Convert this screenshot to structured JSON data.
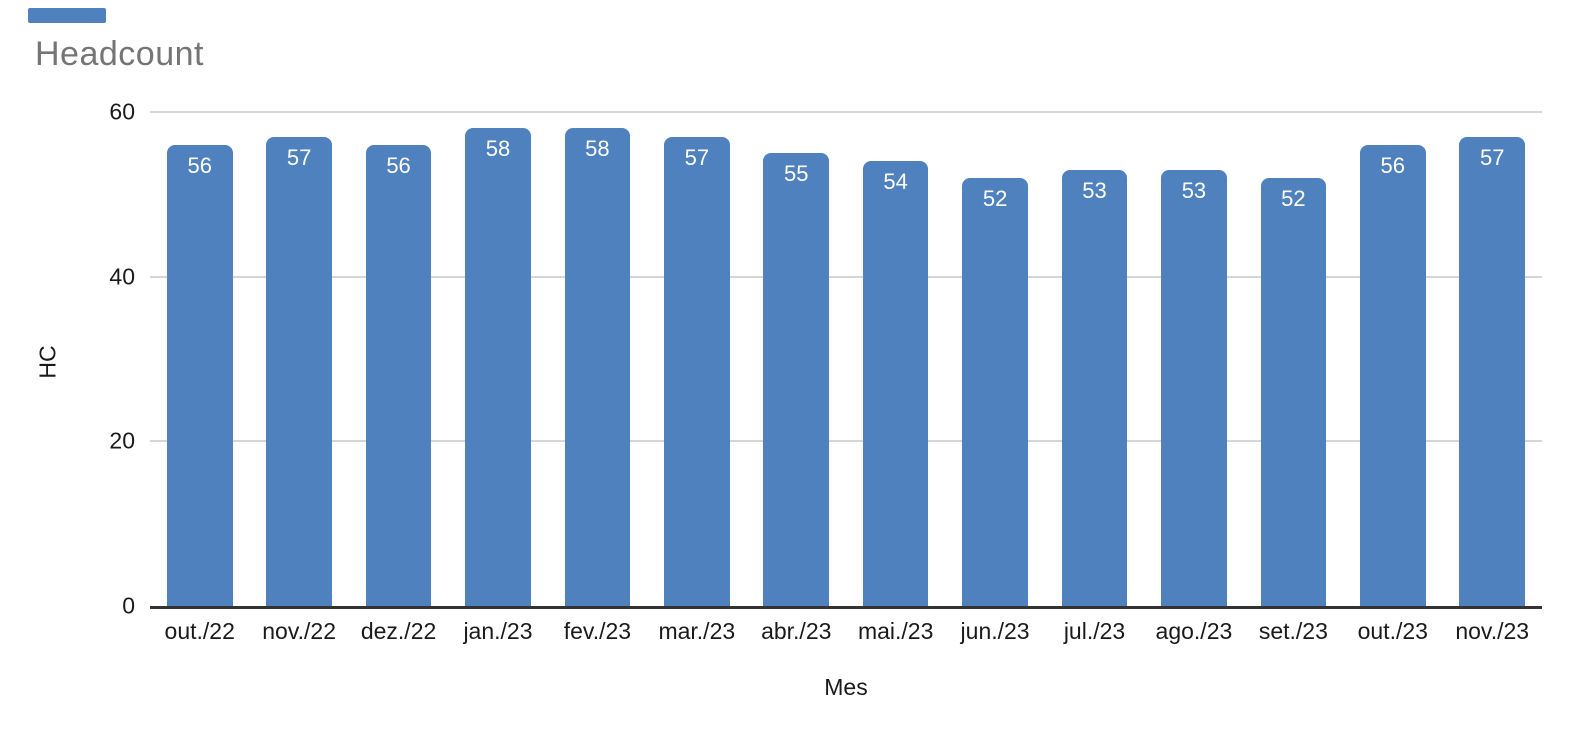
{
  "chart_data": {
    "type": "bar",
    "title": "Headcount",
    "categories": [
      "out./22",
      "nov./22",
      "dez./22",
      "jan./23",
      "fev./23",
      "mar./23",
      "abr./23",
      "mai./23",
      "jun./23",
      "jul./23",
      "ago./23",
      "set./23",
      "out./23",
      "nov./23"
    ],
    "values": [
      56,
      57,
      56,
      58,
      58,
      57,
      55,
      54,
      52,
      53,
      53,
      52,
      56,
      57
    ],
    "xlabel": "Mes",
    "ylabel": "HC",
    "ylim": [
      0,
      60
    ],
    "yticks": [
      0,
      20,
      40,
      60
    ],
    "grid": true,
    "legend": "none",
    "data_labels": "inside-top",
    "colors": {
      "bar": "#4e81bd",
      "bar_label": "#ffffff",
      "title": "#757575",
      "axis_text": "#1a1a1a",
      "gridline": "#d6d6d6",
      "axis_line": "#333333",
      "background": "#ffffff"
    }
  }
}
